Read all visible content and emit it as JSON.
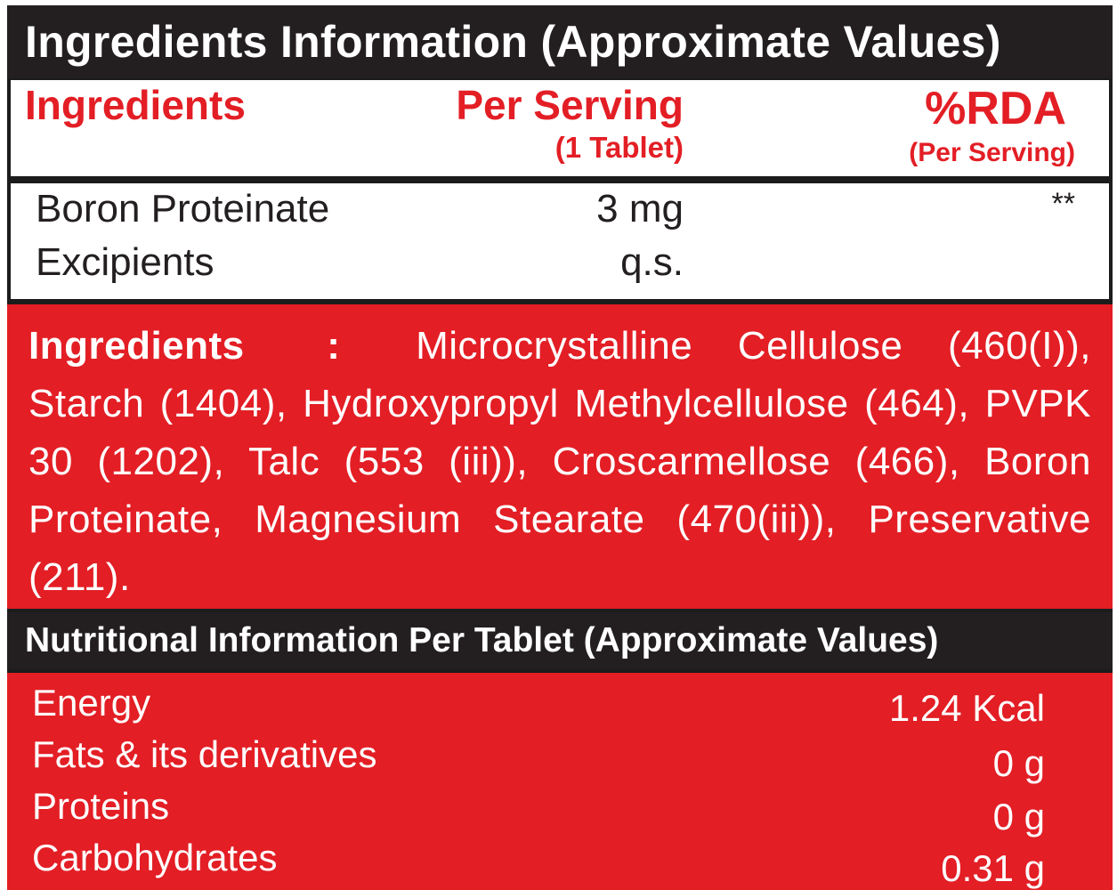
{
  "colors": {
    "red": "#e31e25",
    "dark": "#231f20",
    "white": "#ffffff"
  },
  "title": "Ingredients Information (Approximate Values)",
  "table": {
    "headers": {
      "ingredients": "Ingredients",
      "per_serving": "Per Serving",
      "per_serving_sub": "(1 Tablet)",
      "rda": "%RDA",
      "rda_sub": "(Per Serving)"
    },
    "rows": [
      {
        "name": "Boron Proteinate",
        "amount": "3 mg",
        "rda": "**"
      },
      {
        "name": "Excipients",
        "amount": "q.s.",
        "rda": ""
      }
    ]
  },
  "ingredients_list": {
    "label": "Ingredients",
    "separator": ":",
    "text": "Microcrystalline Cellulose (460(I)), Starch (1404), Hydroxypropyl Methylcellulose (464), PVPK 30 (1202), Talc (553 (iii)), Croscarmellose (466), Boron Proteinate, Magnesium Stearate (470(iii)), Preservative (211)."
  },
  "nutrition": {
    "title": "Nutritional Information Per Tablet (Approximate Values)",
    "rows": [
      {
        "name": "Energy",
        "value": "1.24 Kcal"
      },
      {
        "name": "Fats & its derivatives",
        "value": "0 g"
      },
      {
        "name": "Proteins",
        "value": "0 g"
      },
      {
        "name": "Carbohydrates",
        "value": "0.31 g"
      }
    ]
  }
}
